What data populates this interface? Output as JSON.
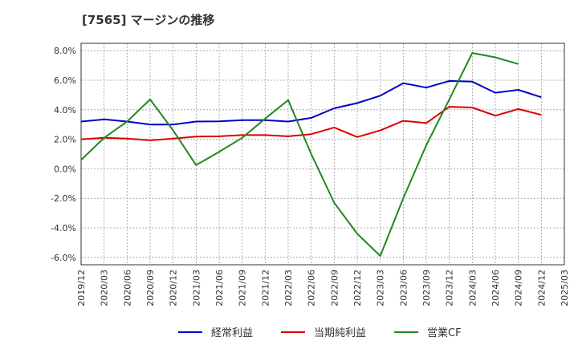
{
  "chart_data": {
    "type": "line",
    "title": "[7565]  マージンの推移",
    "xlabel": "",
    "ylabel": "",
    "x": [
      "2019/12",
      "2020/03",
      "2020/06",
      "2020/09",
      "2020/12",
      "2021/03",
      "2021/06",
      "2021/09",
      "2021/12",
      "2022/03",
      "2022/06",
      "2022/09",
      "2022/12",
      "2023/03",
      "2023/06",
      "2023/09",
      "2023/12",
      "2024/03",
      "2024/06",
      "2024/09",
      "2024/12",
      "2025/03"
    ],
    "ylim": [
      -6.5,
      8.5
    ],
    "yticks": [
      8.0,
      6.0,
      4.0,
      2.0,
      0.0,
      -2.0,
      -4.0,
      -6.0
    ],
    "ytick_labels": [
      "8.0%",
      "6.0%",
      "4.0%",
      "2.0%",
      "0.0%",
      "-2.0%",
      "-4.0%",
      "-6.0%"
    ],
    "grid": true,
    "legend_position": "bottom",
    "series": [
      {
        "name": "経常利益",
        "color": "#0000cc",
        "values": [
          3.2,
          3.35,
          3.2,
          3.0,
          3.0,
          3.2,
          3.22,
          3.3,
          3.3,
          3.2,
          3.45,
          4.1,
          4.45,
          4.95,
          5.8,
          5.5,
          5.95,
          5.9,
          5.15,
          5.35,
          4.85,
          null
        ]
      },
      {
        "name": "当期純利益",
        "color": "#dd0000",
        "values": [
          2.0,
          2.1,
          2.05,
          1.93,
          2.05,
          2.18,
          2.2,
          2.28,
          2.28,
          2.2,
          2.35,
          2.8,
          2.15,
          2.6,
          3.25,
          3.1,
          4.2,
          4.15,
          3.6,
          4.05,
          3.65,
          null
        ]
      },
      {
        "name": "営業CF",
        "color": "#228822",
        "values": [
          0.6,
          2.1,
          3.2,
          4.7,
          2.6,
          0.25,
          1.15,
          2.1,
          3.4,
          4.65,
          1.0,
          -2.3,
          -4.4,
          -5.9,
          -2.0,
          1.6,
          4.7,
          7.85,
          7.55,
          7.1,
          null,
          null
        ]
      }
    ]
  }
}
